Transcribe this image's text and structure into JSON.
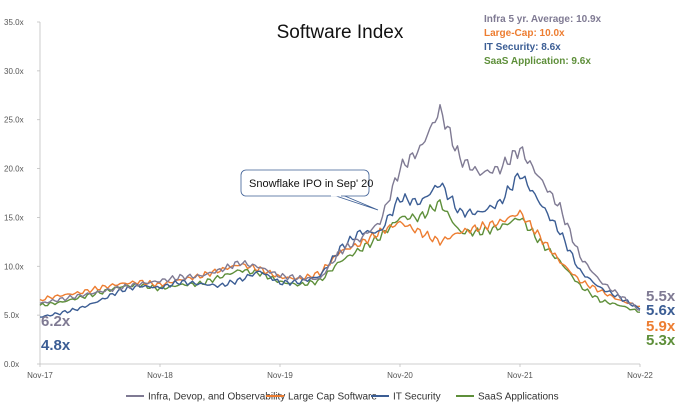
{
  "chart_data": {
    "type": "line",
    "title": "Software Index",
    "xlabel": "",
    "ylabel": "",
    "ylim": [
      0,
      35
    ],
    "y_ticks": [
      0,
      5,
      10,
      15,
      20,
      25,
      30,
      35
    ],
    "y_tick_labels": [
      "0.0x",
      "5.0x",
      "10.0x",
      "15.0x",
      "20.0x",
      "25.0x",
      "30.0x",
      "35.0x"
    ],
    "x_tick_labels": [
      "Nov-17",
      "Nov-18",
      "Nov-19",
      "Nov-20",
      "Nov-21",
      "Nov-22"
    ],
    "x": [
      0,
      2,
      4,
      6,
      8,
      10,
      12,
      14,
      16,
      18,
      20,
      22,
      24,
      26,
      28,
      30,
      32,
      34,
      36,
      38,
      40,
      42,
      44,
      46,
      48,
      50,
      52,
      54,
      56,
      58,
      60
    ],
    "x_unit": "months since Nov-17",
    "series": [
      {
        "name": "Infra, Devop, and Observability",
        "color": "#7f7a93",
        "values": [
          6.2,
          6.6,
          7.0,
          7.4,
          7.8,
          8.2,
          8.5,
          8.9,
          9.0,
          9.6,
          10.4,
          9.9,
          9.0,
          8.8,
          8.7,
          11.5,
          12.8,
          14.5,
          20.0,
          22.0,
          26.0,
          21.0,
          19.5,
          20.0,
          22.0,
          19.0,
          16.0,
          11.0,
          8.5,
          7.0,
          5.5
        ]
      },
      {
        "name": "Large Cap Software",
        "color": "#ed7d31",
        "values": [
          6.6,
          7.0,
          7.3,
          7.8,
          8.2,
          8.4,
          8.1,
          8.6,
          9.0,
          9.6,
          10.2,
          9.7,
          8.9,
          8.7,
          9.3,
          11.5,
          12.3,
          13.5,
          14.5,
          13.5,
          12.5,
          13.5,
          14.0,
          14.5,
          15.5,
          13.0,
          10.5,
          8.5,
          7.5,
          6.5,
          5.9
        ]
      },
      {
        "name": "IT Security",
        "color": "#3b5d94",
        "values": [
          4.8,
          5.2,
          5.7,
          6.5,
          7.5,
          8.0,
          7.8,
          8.4,
          8.2,
          8.0,
          8.6,
          9.5,
          8.3,
          8.4,
          9.0,
          11.8,
          13.5,
          13.5,
          17.0,
          16.5,
          18.5,
          15.5,
          15.5,
          16.5,
          19.5,
          16.5,
          13.5,
          9.5,
          7.8,
          6.8,
          5.6
        ]
      },
      {
        "name": "SaaS Applications",
        "color": "#5e8f3a",
        "values": [
          6.0,
          6.3,
          6.8,
          7.3,
          7.9,
          8.1,
          7.7,
          8.1,
          8.2,
          8.9,
          9.6,
          9.3,
          8.4,
          8.1,
          8.5,
          10.5,
          11.7,
          13.0,
          15.0,
          15.0,
          16.5,
          13.5,
          13.5,
          14.0,
          15.0,
          12.5,
          10.5,
          8.0,
          6.5,
          6.0,
          5.3
        ]
      }
    ],
    "stats_box": [
      {
        "label": "Infra 5 yr. Average: 10.9x",
        "color": "#7f7a93"
      },
      {
        "label": "Large-Cap: 10.0x",
        "color": "#ed7d31"
      },
      {
        "label": "IT Security: 8.6x",
        "color": "#3b5d94"
      },
      {
        "label": "SaaS Application: 9.6x",
        "color": "#5e8f3a"
      }
    ],
    "start_labels": [
      {
        "text": "6.2x",
        "color": "#7f7a93",
        "value": 6.2
      },
      {
        "text": "4.8x",
        "color": "#3b5d94",
        "value": 4.8
      }
    ],
    "end_labels": [
      {
        "text": "5.5x",
        "color": "#7f7a93"
      },
      {
        "text": "5.6x",
        "color": "#3b5d94"
      },
      {
        "text": "5.9x",
        "color": "#ed7d31"
      },
      {
        "text": "5.3x",
        "color": "#5e8f3a"
      }
    ],
    "annotation": {
      "text": "Snowflake IPO in Sep' 20",
      "x": 34,
      "y": 14.5
    },
    "legend_position": "bottom"
  }
}
